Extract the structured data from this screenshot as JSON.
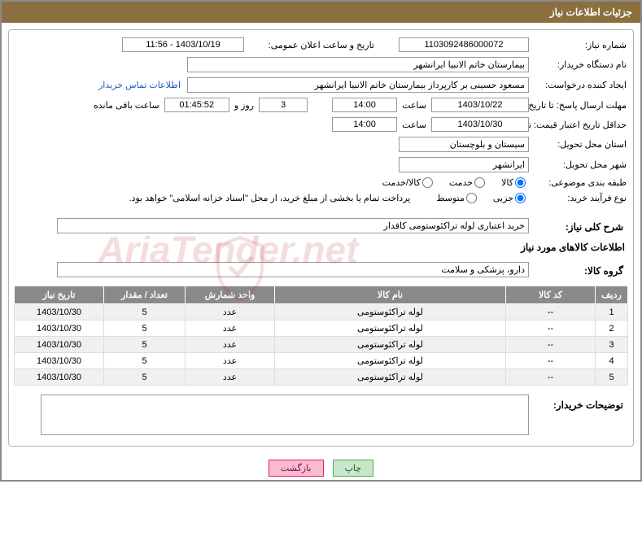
{
  "header": {
    "title": "جزئیات اطلاعات نیاز"
  },
  "fields": {
    "request_no_label": "شماره نیاز:",
    "request_no": "1103092486000072",
    "announce_label": "تاریخ و ساعت اعلان عمومی:",
    "announce_value": "1403/10/19 - 11:56",
    "buyer_org_label": "نام دستگاه خریدار:",
    "buyer_org": "بیمارستان خاتم الانبیا ایرانشهر",
    "creator_label": "ایجاد کننده درخواست:",
    "creator": "مسعود حسینی بر کارپرداز بیمارستان خاتم الانبیا ایرانشهر",
    "contact_link": "اطلاعات تماس خریدار",
    "deadline_label": "مهلت ارسال پاسخ: تا تاریخ:",
    "deadline_date": "1403/10/22",
    "time_label": "ساعت",
    "deadline_time": "14:00",
    "days_val": "3",
    "days_and": "روز و",
    "remaining_time": "01:45:52",
    "remaining_label": "ساعت باقی مانده",
    "min_valid_label": "حداقل تاریخ اعتبار قیمت: تا تاریخ:",
    "min_valid_date": "1403/10/30",
    "min_valid_time": "14:00",
    "province_label": "استان محل تحویل:",
    "province": "سیستان و بلوچستان",
    "city_label": "شهر محل تحویل:",
    "city": "ایرانشهر",
    "category_label": "طبقه بندی موضوعی:",
    "cat_kala": "کالا",
    "cat_khedmat": "خدمت",
    "cat_both": "کالا/خدمت",
    "process_label": "نوع فرآیند خرید:",
    "proc_small": "جزیی",
    "proc_medium": "متوسط",
    "treasury_note": "پرداخت تمام یا بخشی از مبلغ خرید، از محل \"اسناد خزانه اسلامی\" خواهد بود.",
    "desc_label": "شرح کلی نیاز:",
    "desc_value": "خرید اعتباری لوله تراکئوستومی کافدار",
    "goods_section": "اطلاعات کالاهای مورد نیاز",
    "group_label": "گروه کالا:",
    "group_value": "دارو، پزشکی و سلامت",
    "buyer_notes_label": "توضیحات خریدار:"
  },
  "table": {
    "headers": {
      "row": "ردیف",
      "code": "کد کالا",
      "name": "نام کالا",
      "unit": "واحد شمارش",
      "qty": "تعداد / مقدار",
      "date": "تاریخ نیاز"
    },
    "rows": [
      {
        "n": "1",
        "code": "--",
        "name": "لوله تراکئوستومی",
        "unit": "عدد",
        "qty": "5",
        "date": "1403/10/30"
      },
      {
        "n": "2",
        "code": "--",
        "name": "لوله تراکئوستومی",
        "unit": "عدد",
        "qty": "5",
        "date": "1403/10/30"
      },
      {
        "n": "3",
        "code": "--",
        "name": "لوله تراکئوستومی",
        "unit": "عدد",
        "qty": "5",
        "date": "1403/10/30"
      },
      {
        "n": "4",
        "code": "--",
        "name": "لوله تراکئوستومی",
        "unit": "عدد",
        "qty": "5",
        "date": "1403/10/30"
      },
      {
        "n": "5",
        "code": "--",
        "name": "لوله تراکئوستومی",
        "unit": "عدد",
        "qty": "5",
        "date": "1403/10/30"
      }
    ],
    "col_widths": {
      "row": "40px",
      "code": "110px",
      "name": "auto",
      "unit": "110px",
      "qty": "100px",
      "date": "110px"
    }
  },
  "buttons": {
    "print": "چاپ",
    "back": "بازگشت"
  },
  "watermark": "AriaTender.net",
  "colors": {
    "header_bg": "#8b6f3f",
    "th_bg": "#8a8a8a",
    "row_odd": "#f0f0f0",
    "row_even": "#ffffff",
    "link": "#1a5cc8"
  }
}
